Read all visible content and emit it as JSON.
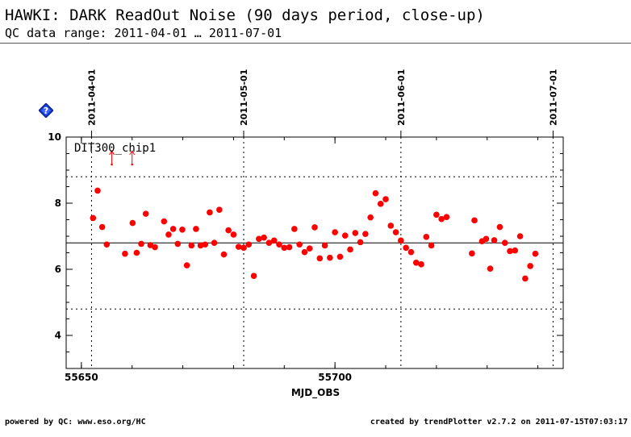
{
  "header": {
    "title": "HAWKI: DARK ReadOut Noise (90 days period, close-up)",
    "subtitle": "QC data range: 2011-04-01 … 2011-07-01"
  },
  "footer": {
    "powered_by": "powered by QC: www.eso.org/HC",
    "created_by": "created by trendPlotter v2.7.2 on 2011-07-15T07:03:17"
  },
  "icons": {
    "help": "help-diamond-icon"
  },
  "colors": {
    "points": "#ff0000",
    "axis": "#000000",
    "grid": "#000000"
  },
  "chart_data": {
    "type": "scatter",
    "xlabel": "MJD_OBS",
    "ylabel": "",
    "xlim": [
      55647,
      55745
    ],
    "ylim": [
      3,
      10
    ],
    "x_ticks": [
      55650,
      55700
    ],
    "y_ticks": [
      4,
      6,
      8,
      10
    ],
    "series_label": "DIT300_chip1",
    "date_markers": [
      {
        "label": "2011-04-01",
        "x": 55652
      },
      {
        "label": "2011-05-01",
        "x": 55682
      },
      {
        "label": "2011-06-01",
        "x": 55713
      },
      {
        "label": "2011-07-01",
        "x": 55743
      }
    ],
    "reference_lines": {
      "mean": 6.8,
      "lower": 4.8,
      "upper": 8.8
    },
    "out_of_range_x": [
      55656,
      55660
    ],
    "points": [
      [
        55652.3,
        7.55
      ],
      [
        55653.2,
        8.38
      ],
      [
        55654.1,
        7.28
      ],
      [
        55655.0,
        6.75
      ],
      [
        55658.6,
        6.47
      ],
      [
        55660.1,
        7.4
      ],
      [
        55660.9,
        6.5
      ],
      [
        55661.8,
        6.77
      ],
      [
        55662.7,
        7.68
      ],
      [
        55663.6,
        6.73
      ],
      [
        55664.5,
        6.67
      ],
      [
        55666.3,
        7.45
      ],
      [
        55667.2,
        7.05
      ],
      [
        55668.1,
        7.22
      ],
      [
        55669.0,
        6.77
      ],
      [
        55669.9,
        7.2
      ],
      [
        55670.8,
        6.12
      ],
      [
        55671.7,
        6.72
      ],
      [
        55672.6,
        7.22
      ],
      [
        55673.5,
        6.72
      ],
      [
        55674.4,
        6.75
      ],
      [
        55675.3,
        7.72
      ],
      [
        55676.2,
        6.8
      ],
      [
        55677.2,
        7.8
      ],
      [
        55678.1,
        6.45
      ],
      [
        55679.0,
        7.18
      ],
      [
        55680.0,
        7.05
      ],
      [
        55681.0,
        6.68
      ],
      [
        55682.0,
        6.65
      ],
      [
        55683.0,
        6.75
      ],
      [
        55684.0,
        5.8
      ],
      [
        55685.0,
        6.92
      ],
      [
        55686.0,
        6.96
      ],
      [
        55687.0,
        6.8
      ],
      [
        55688.0,
        6.87
      ],
      [
        55689.0,
        6.75
      ],
      [
        55690.0,
        6.65
      ],
      [
        55691.0,
        6.67
      ],
      [
        55692.0,
        7.22
      ],
      [
        55693.0,
        6.75
      ],
      [
        55694.0,
        6.52
      ],
      [
        55695.0,
        6.63
      ],
      [
        55696.0,
        7.27
      ],
      [
        55697.0,
        6.33
      ],
      [
        55698.0,
        6.72
      ],
      [
        55699.0,
        6.35
      ],
      [
        55700.0,
        7.12
      ],
      [
        55701.0,
        6.38
      ],
      [
        55702.0,
        7.02
      ],
      [
        55703.0,
        6.6
      ],
      [
        55704.0,
        7.1
      ],
      [
        55705.0,
        6.82
      ],
      [
        55706.0,
        7.07
      ],
      [
        55707.0,
        7.57
      ],
      [
        55708.0,
        8.3
      ],
      [
        55709.0,
        7.98
      ],
      [
        55710.0,
        8.12
      ],
      [
        55711.0,
        7.32
      ],
      [
        55712.0,
        7.12
      ],
      [
        55713.0,
        6.87
      ],
      [
        55714.0,
        6.65
      ],
      [
        55715.0,
        6.52
      ],
      [
        55716.0,
        6.2
      ],
      [
        55717.0,
        6.15
      ],
      [
        55718.0,
        6.98
      ],
      [
        55719.0,
        6.72
      ],
      [
        55720.0,
        7.65
      ],
      [
        55721.0,
        7.52
      ],
      [
        55722.0,
        7.58
      ],
      [
        55727.0,
        6.48
      ],
      [
        55727.5,
        7.48
      ],
      [
        55729.0,
        6.85
      ],
      [
        55729.8,
        6.92
      ],
      [
        55730.6,
        6.02
      ],
      [
        55731.4,
        6.88
      ],
      [
        55732.5,
        7.28
      ],
      [
        55733.5,
        6.8
      ],
      [
        55734.5,
        6.55
      ],
      [
        55735.5,
        6.57
      ],
      [
        55736.5,
        7.0
      ],
      [
        55737.5,
        5.72
      ],
      [
        55738.5,
        6.1
      ],
      [
        55739.5,
        6.47
      ]
    ]
  }
}
